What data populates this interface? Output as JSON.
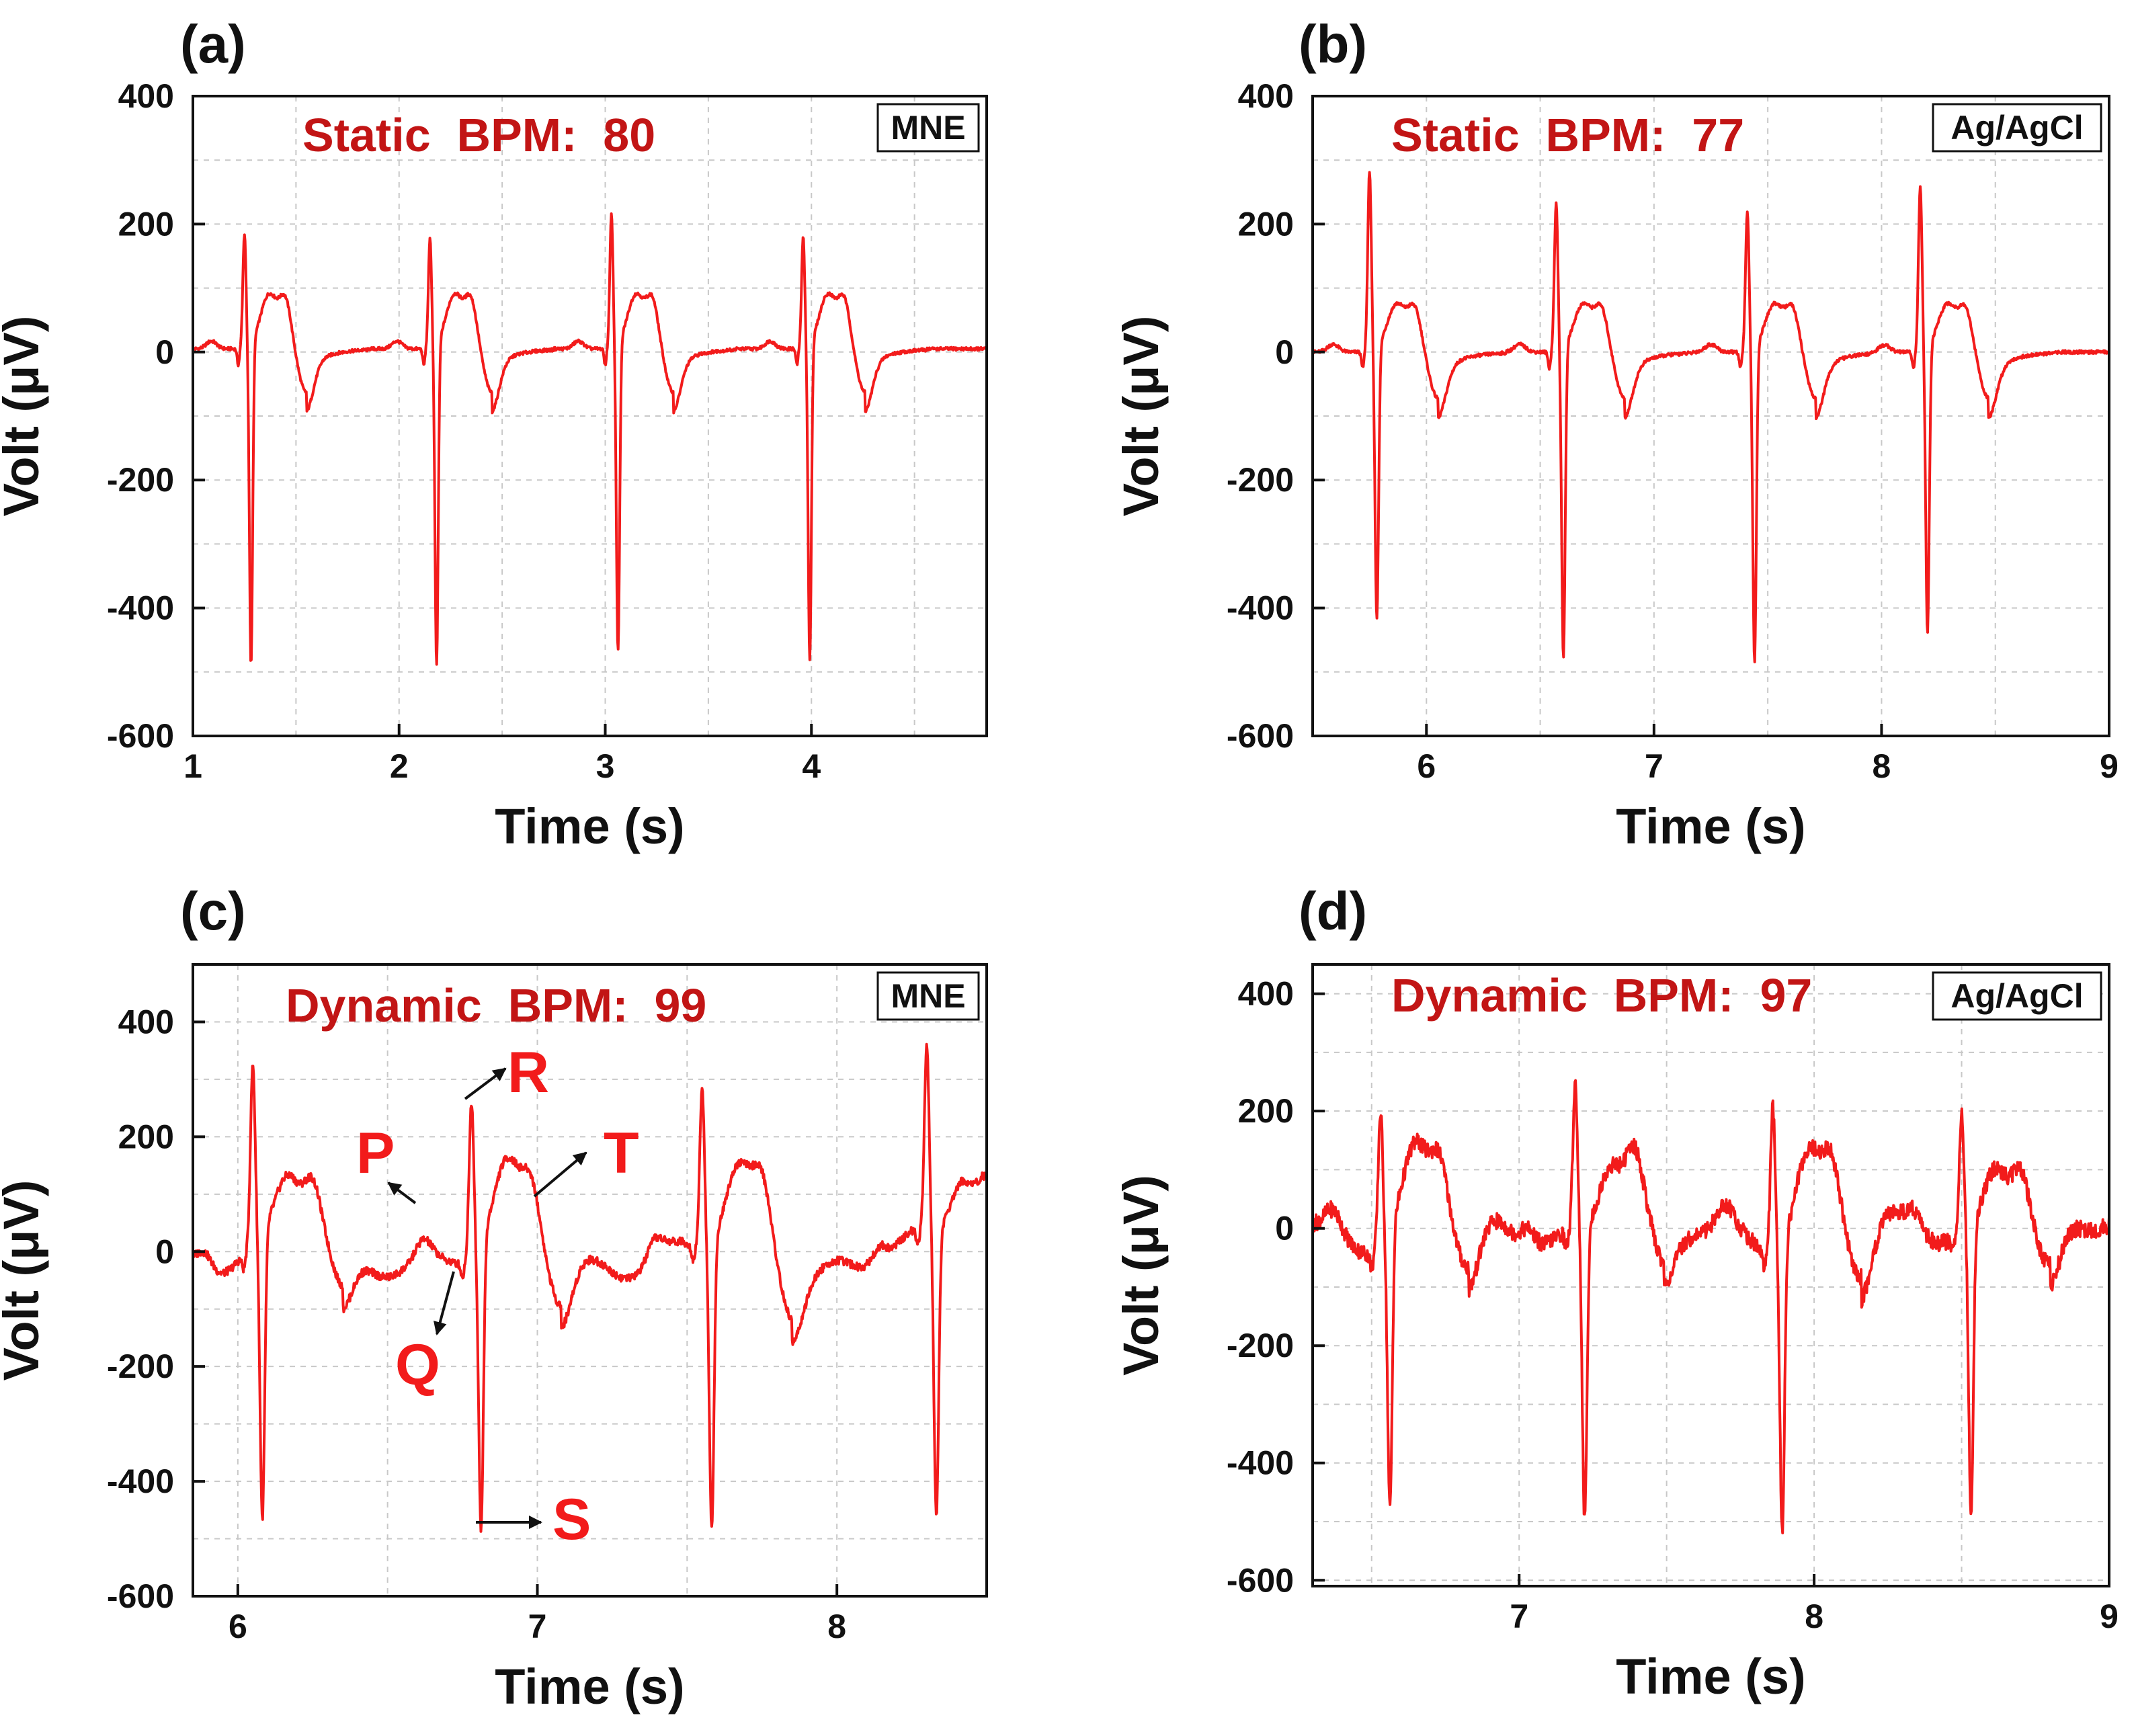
{
  "colors": {
    "trace": "#f21b1b",
    "annotation_text": "#c21515",
    "label_red": "#f21b1b",
    "axis": "#111111",
    "grid": "#c8c8c8",
    "arrow": "#111111"
  },
  "chart_data": [
    {
      "type": "line",
      "panel_label": "(a)",
      "xlabel": "Time (s)",
      "ylabel": "Volt (μV)",
      "xlim": [
        1,
        4.85
      ],
      "ylim": [
        -600,
        400
      ],
      "xticks": [
        "1",
        "2",
        "3",
        "4"
      ],
      "yticks": [
        "400",
        "200",
        "0",
        "-200",
        "-400",
        "-600"
      ],
      "grid": true,
      "annotation": "Static  BPM:  80",
      "legend": "MNE",
      "legend_position": "top-right",
      "beats": [
        {
          "r_time": 1.25,
          "r_amp": 183,
          "s_amp": -500
        },
        {
          "r_time": 2.15,
          "r_amp": 175,
          "s_amp": -500
        },
        {
          "r_time": 3.03,
          "r_amp": 213,
          "s_amp": -478
        },
        {
          "r_time": 3.96,
          "r_amp": 178,
          "s_amp": -493
        }
      ],
      "baseline": 5,
      "t_wave_amp": 85,
      "trough_amp": -68
    },
    {
      "type": "line",
      "panel_label": "(b)",
      "xlabel": "Time (s)",
      "ylabel": "Volt (μV)",
      "xlim": [
        5.5,
        9
      ],
      "ylim": [
        -600,
        400
      ],
      "xticks": [
        "6",
        "7",
        "8",
        "9"
      ],
      "yticks": [
        "400",
        "200",
        "0",
        "-200",
        "-400",
        "-600"
      ],
      "grid": true,
      "annotation": "Static  BPM:  77",
      "legend": "Ag/AgCl",
      "legend_position": "top-right",
      "beats": [
        {
          "r_time": 5.75,
          "r_amp": 282,
          "s_amp": -425
        },
        {
          "r_time": 6.57,
          "r_amp": 230,
          "s_amp": -485
        },
        {
          "r_time": 7.41,
          "r_amp": 218,
          "s_amp": -492
        },
        {
          "r_time": 8.17,
          "r_amp": 258,
          "s_amp": -448
        }
      ],
      "baseline": 0,
      "t_wave_amp": 75,
      "trough_amp": -72
    },
    {
      "type": "line",
      "panel_label": "(c)",
      "xlabel": "Time (s)",
      "ylabel": "Volt (μV)",
      "xlim": [
        5.85,
        8.5
      ],
      "ylim": [
        -600,
        500
      ],
      "xticks": [
        "6",
        "7",
        "8"
      ],
      "yticks": [
        "400",
        "200",
        "0",
        "-200",
        "-400",
        "-600"
      ],
      "grid": true,
      "annotation": "Dynamic  BPM:  99",
      "legend": "MNE",
      "legend_position": "top-right",
      "wave_labels": [
        "R",
        "P",
        "T",
        "Q",
        "S"
      ],
      "beats": [
        {
          "r_time": 6.05,
          "r_amp": 310,
          "s_amp": -500
        },
        {
          "r_time": 6.78,
          "r_amp": 270,
          "s_amp": -500
        },
        {
          "r_time": 7.55,
          "r_amp": 275,
          "s_amp": -500
        },
        {
          "r_time": 8.3,
          "r_amp": 320,
          "s_amp": -500
        }
      ],
      "baseline": 0,
      "t_wave_amp": 120,
      "trough_amp": -90
    },
    {
      "type": "line",
      "panel_label": "(d)",
      "xlabel": "Time (s)",
      "ylabel": "Volt (μV)",
      "xlim": [
        6.3,
        9
      ],
      "ylim": [
        -610,
        450
      ],
      "xticks": [
        "7",
        "8",
        "9"
      ],
      "yticks": [
        "400",
        "200",
        "0",
        "-200",
        "-400",
        "-600"
      ],
      "grid": true,
      "annotation": "Dynamic  BPM:  97",
      "legend": "Ag/AgCl",
      "legend_position": "top-right",
      "beats": [
        {
          "r_time": 6.53,
          "r_amp": 228,
          "s_amp": -478
        },
        {
          "r_time": 7.19,
          "r_amp": 255,
          "s_amp": -500
        },
        {
          "r_time": 7.86,
          "r_amp": 245,
          "s_amp": -500
        },
        {
          "r_time": 8.5,
          "r_amp": 205,
          "s_amp": -500
        }
      ],
      "baseline": 0,
      "t_wave_amp": 130,
      "trough_amp": -90
    }
  ]
}
